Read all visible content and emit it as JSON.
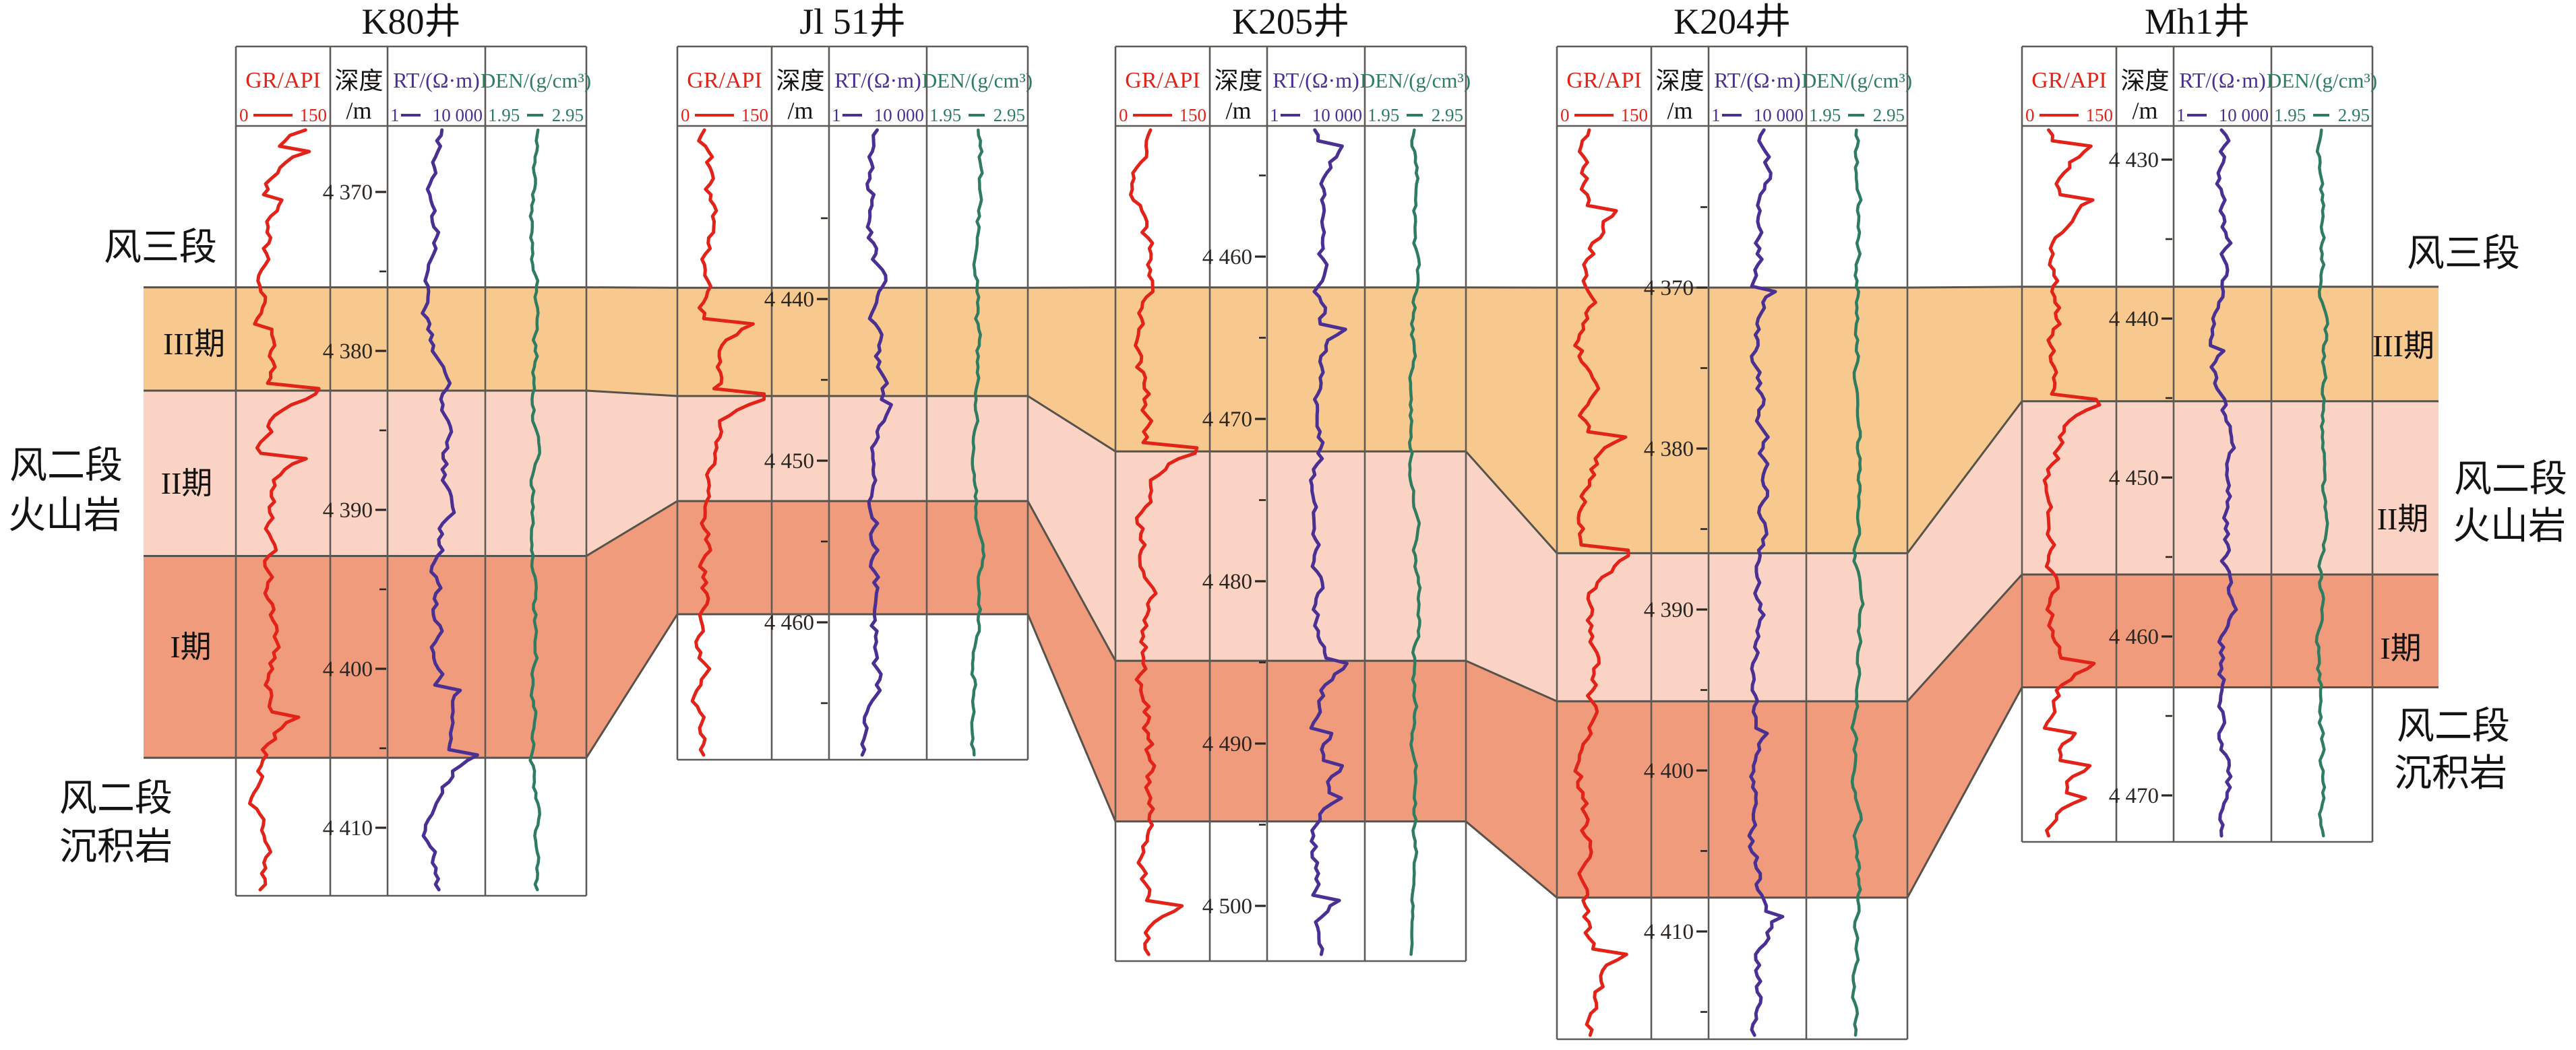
{
  "figure": {
    "kind": "well-log-correlation-section",
    "section_units_left_to_right": 5
  },
  "tracks": {
    "gr": {
      "name": "GR/API",
      "min": "0",
      "max": "150",
      "scale": "linear"
    },
    "depth": {
      "name": "深度",
      "unit": "/m"
    },
    "rt": {
      "name": "RT/(Ω·m)",
      "min": "1",
      "max": "10 000",
      "scale": "log"
    },
    "den": {
      "name": "DEN/(g/cm³)",
      "min": "1.95",
      "max": "2.95",
      "scale": "linear"
    }
  },
  "wells": [
    {
      "name": "K80井",
      "depth_start": 4370,
      "depth_labels": [
        "4 370",
        "4 380",
        "4 390",
        "4 400",
        "4 410"
      ],
      "tops_m": {
        "III": 4376.0,
        "II": 4382.5,
        "I": 4392.9,
        "I_base": 4405.6
      }
    },
    {
      "name": "Jl 51井",
      "depth_start": 4440,
      "depth_labels": [
        "4 440",
        "4 450",
        "4 460"
      ],
      "tops_m": {
        "III": 4439.3,
        "II": 4446.0,
        "I": 4452.5,
        "I_base": 4459.5
      }
    },
    {
      "name": "K205井",
      "depth_start": 4460,
      "depth_labels": [
        "4 460",
        "4 470",
        "4 480",
        "4 490",
        "4 500"
      ],
      "tops_m": {
        "III": 4461.9,
        "II": 4472.0,
        "I": 4484.9,
        "I_base": 4494.8
      }
    },
    {
      "name": "K204井",
      "depth_start": 4370,
      "depth_labels": [
        "4 370",
        "4 380",
        "4 390",
        "4 400",
        "4 410"
      ],
      "tops_m": {
        "III": 4370.0,
        "II": 4386.5,
        "I": 4395.7,
        "I_base": 4407.9
      }
    },
    {
      "name": "Mh1井",
      "depth_start": 4430,
      "depth_labels": [
        "4 430",
        "4 440",
        "4 450",
        "4 460",
        "4 470"
      ],
      "tops_m": {
        "III": 4438.0,
        "II": 4445.2,
        "I": 4456.1,
        "I_base": 4463.2
      }
    }
  ],
  "bands": [
    {
      "id": "band-iii",
      "label": "III期",
      "color": "#F7C98F"
    },
    {
      "id": "band-ii",
      "label": "II期",
      "color": "#FAD3C4"
    },
    {
      "id": "band-i",
      "label": "I期",
      "color": "#F09B7B"
    }
  ],
  "side_labels": [
    {
      "id": "left-fs3",
      "side": "left",
      "text": "风三段"
    },
    {
      "id": "left-iii",
      "side": "left",
      "text": "III期"
    },
    {
      "id": "left-fs2v-1",
      "side": "left",
      "text": "风二段"
    },
    {
      "id": "left-fs2v-2",
      "side": "left",
      "text": "火山岩"
    },
    {
      "id": "left-ii",
      "side": "left",
      "text": "II期"
    },
    {
      "id": "left-i",
      "side": "left",
      "text": "I期"
    },
    {
      "id": "left-fs2s-1",
      "side": "left",
      "text": "风二段"
    },
    {
      "id": "left-fs2s-2",
      "side": "left",
      "text": "沉积岩"
    },
    {
      "id": "right-fs3",
      "side": "right",
      "text": "风三段"
    },
    {
      "id": "right-iii",
      "side": "right",
      "text": "III期"
    },
    {
      "id": "right-fs2v-1",
      "side": "right",
      "text": "风二段"
    },
    {
      "id": "right-fs2v-2",
      "side": "right",
      "text": "火山岩"
    },
    {
      "id": "right-ii",
      "side": "right",
      "text": "II期"
    },
    {
      "id": "right-i",
      "side": "right",
      "text": "I期"
    },
    {
      "id": "right-fs2s-1",
      "side": "right",
      "text": "风二段"
    },
    {
      "id": "right-fs2s-2",
      "side": "right",
      "text": "沉积岩"
    }
  ],
  "colors": {
    "band_iii": "#F7C98F",
    "band_ii": "#FAD3C4",
    "band_i": "#F09B7B",
    "boundary": "#57524C",
    "grid": "#5E5B57",
    "gr": "#E2231A",
    "rt": "#4A3092",
    "den": "#2F7C60",
    "text": "#2B2622",
    "title": "#151311"
  },
  "chart_data": {
    "type": "well_log_correlation",
    "title": "",
    "wells": [
      "K80井",
      "Jl 51井",
      "K205井",
      "K204井",
      "Mh1井"
    ],
    "log_tracks_per_well": [
      "GR/API 0-150",
      "深度/m",
      "RT/(Ω·m) 1-10 000",
      "DEN/(g/cm³) 1.95-2.95"
    ],
    "depth_tick_labels_m": {
      "K80井": [
        4370,
        4380,
        4390,
        4400,
        4410
      ],
      "Jl 51井": [
        4440,
        4450,
        4460
      ],
      "K205井": [
        4460,
        4470,
        4480,
        4490,
        4500
      ],
      "K204井": [
        4370,
        4380,
        4390,
        4400,
        4410
      ],
      "Mh1井": [
        4430,
        4440,
        4450,
        4460,
        4470
      ]
    },
    "correlation_surfaces_depth_m": {
      "top_III期": {
        "K80井": 4376.0,
        "Jl 51井": 4439.3,
        "K205井": 4461.9,
        "K204井": 4370.0,
        "Mh1井": 4438.0
      },
      "top_II期": {
        "K80井": 4382.5,
        "Jl 51井": 4446.0,
        "K205井": 4472.0,
        "K204井": 4386.5,
        "Mh1井": 4445.2
      },
      "top_I期": {
        "K80井": 4392.9,
        "Jl 51井": 4452.5,
        "K205井": 4484.9,
        "K204井": 4395.7,
        "Mh1井": 4456.1
      },
      "base_I期": {
        "K80井": 4405.6,
        "Jl 51井": 4459.5,
        "K205井": 4494.8,
        "K204井": 4407.9,
        "Mh1井": 4463.2
      }
    },
    "stratigraphy_top_to_bottom": [
      "风三段",
      "风二段火山岩 III期",
      "风二段火山岩 II期",
      "风二段火山岩 I期",
      "风二段沉积岩"
    ],
    "legend_position": "none",
    "grid": "track borders only"
  }
}
